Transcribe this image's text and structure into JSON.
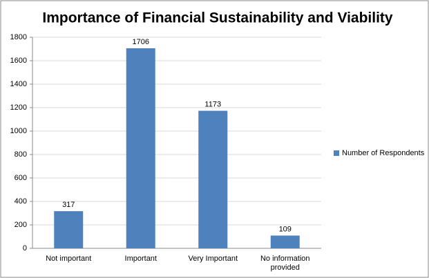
{
  "chart_data": {
    "type": "bar",
    "title": "Importance of Financial Sustainability and Viability",
    "categories": [
      "Not important",
      "Important",
      "Very Important",
      "No information provided"
    ],
    "series": [
      {
        "name": "Number of Respondents",
        "color": "#4f81bd",
        "values": [
          317,
          1706,
          1173,
          109
        ]
      }
    ],
    "ylim": [
      0,
      1800
    ],
    "yticks": [
      0,
      200,
      400,
      600,
      800,
      1000,
      1200,
      1400,
      1600,
      1800
    ],
    "grid": true,
    "legend": "right"
  }
}
